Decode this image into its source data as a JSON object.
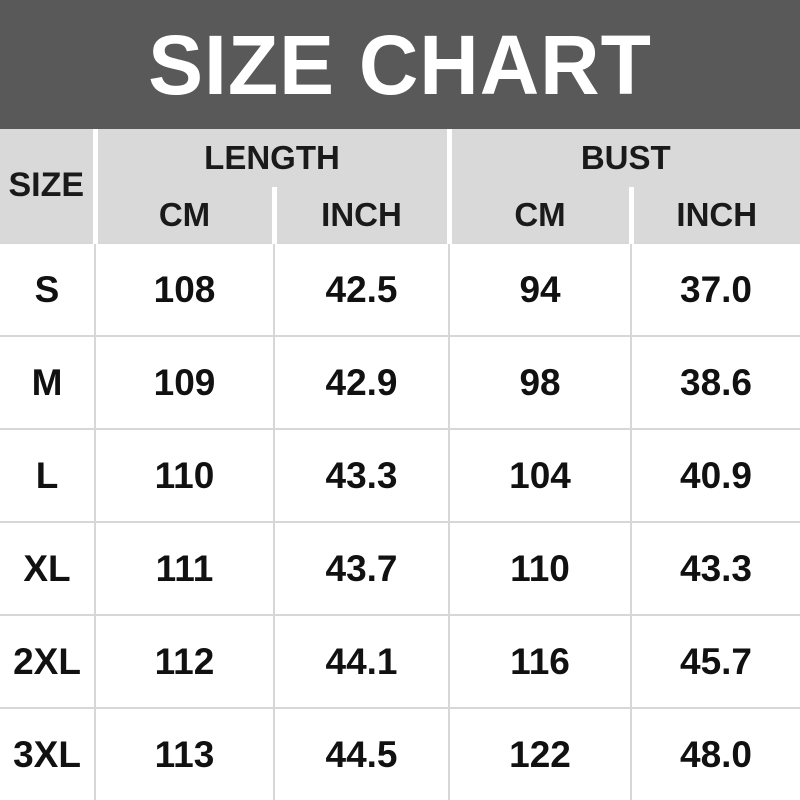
{
  "title": "SIZE CHART",
  "table": {
    "headers": {
      "size": "SIZE",
      "length": "LENGTH",
      "bust": "BUST",
      "cm": "CM",
      "inch": "INCH"
    },
    "rows": [
      {
        "size": "S",
        "length_cm": "108",
        "length_inch": "42.5",
        "bust_cm": "94",
        "bust_inch": "37.0"
      },
      {
        "size": "M",
        "length_cm": "109",
        "length_inch": "42.9",
        "bust_cm": "98",
        "bust_inch": "38.6"
      },
      {
        "size": "L",
        "length_cm": "110",
        "length_inch": "43.3",
        "bust_cm": "104",
        "bust_inch": "40.9"
      },
      {
        "size": "XL",
        "length_cm": "111",
        "length_inch": "43.7",
        "bust_cm": "110",
        "bust_inch": "43.3"
      },
      {
        "size": "2XL",
        "length_cm": "112",
        "length_inch": "44.1",
        "bust_cm": "116",
        "bust_inch": "45.7"
      },
      {
        "size": "3XL",
        "length_cm": "113",
        "length_inch": "44.5",
        "bust_cm": "122",
        "bust_inch": "48.0"
      }
    ]
  },
  "chart_data": {
    "type": "table",
    "title": "SIZE CHART",
    "columns": [
      "SIZE",
      "LENGTH CM",
      "LENGTH INCH",
      "BUST CM",
      "BUST INCH"
    ],
    "rows": [
      [
        "S",
        108,
        42.5,
        94,
        37.0
      ],
      [
        "M",
        109,
        42.9,
        98,
        38.6
      ],
      [
        "L",
        110,
        43.3,
        104,
        40.9
      ],
      [
        "XL",
        111,
        43.7,
        110,
        43.3
      ],
      [
        "2XL",
        112,
        44.1,
        116,
        45.7
      ],
      [
        "3XL",
        113,
        44.5,
        122,
        48.0
      ]
    ]
  },
  "colors": {
    "banner_bg": "#595959",
    "header_bg": "#d9d9d9",
    "body_bg": "#ffffff",
    "header_divider": "#ffffff",
    "grid_line": "#d7d7d7",
    "title_text": "#ffffff",
    "table_text": "#111111"
  }
}
